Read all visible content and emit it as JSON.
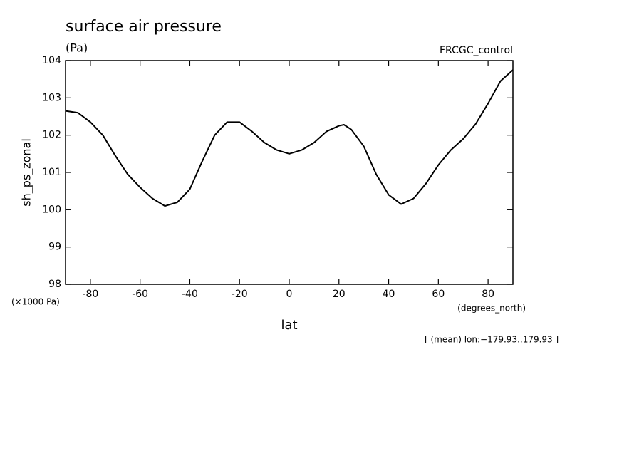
{
  "chart_data": {
    "type": "line",
    "title": "surface air pressure",
    "subtitle": "(Pa)",
    "annotation": "FRCGC_control",
    "y_label": "sh_ps_zonal",
    "y_unit": "(×1000 Pa)",
    "x_unit": "(degrees_north)",
    "x_label": "lat",
    "footnote": "[ (mean) lon:−179.93..179.93 ]",
    "x": [
      -90,
      -85,
      -80,
      -75,
      -70,
      -65,
      -60,
      -55,
      -50,
      -45,
      -40,
      -35,
      -30,
      -25,
      -20,
      -15,
      -10,
      -5,
      0,
      5,
      10,
      15,
      20,
      22,
      25,
      30,
      35,
      40,
      45,
      50,
      55,
      60,
      65,
      70,
      75,
      80,
      85,
      90
    ],
    "series": [
      {
        "color": "#000000",
        "values": [
          102.65,
          102.6,
          102.35,
          102.0,
          101.45,
          100.95,
          100.6,
          100.3,
          100.1,
          100.2,
          100.55,
          101.3,
          102.0,
          102.35,
          102.35,
          102.1,
          101.8,
          101.6,
          101.5,
          101.6,
          101.8,
          102.1,
          102.25,
          102.28,
          102.15,
          101.7,
          100.95,
          100.4,
          100.15,
          100.3,
          100.7,
          101.2,
          101.6,
          101.9,
          102.3,
          102.85,
          103.45,
          103.75
        ]
      }
    ],
    "xlim": [
      -90,
      90
    ],
    "xticks": [
      -80,
      -60,
      -40,
      -20,
      0,
      20,
      40,
      60,
      80
    ],
    "ylim": [
      98,
      104
    ],
    "yticks": [
      98,
      99,
      100,
      101,
      102,
      103,
      104
    ]
  }
}
